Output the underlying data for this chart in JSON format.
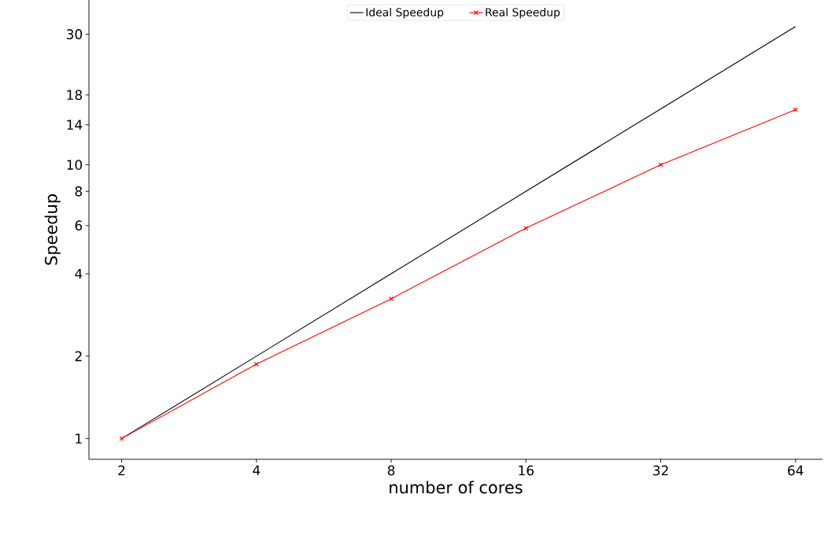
{
  "chart_data": {
    "type": "line",
    "xlabel": "number of cores",
    "ylabel": "Speedup",
    "log": "xy",
    "x": [
      2,
      4,
      8,
      16,
      32,
      64
    ],
    "series": [
      {
        "name": "Ideal Speedup",
        "color": "#000000",
        "values": [
          1,
          2,
          4,
          8,
          16,
          32
        ],
        "marker": "none"
      },
      {
        "name": "Real Speedup",
        "color": "#ff0000",
        "values": [
          1,
          1.87,
          3.24,
          5.87,
          10.0,
          15.9
        ],
        "marker": "cross"
      }
    ],
    "xlim": [
      1.69,
      73.5
    ],
    "ylim": [
      0.84,
      40
    ],
    "xticks": [
      2,
      4,
      8,
      16,
      32,
      64
    ],
    "yticks": [
      1,
      2,
      4,
      6,
      8,
      10,
      14,
      18,
      30
    ],
    "grid": false,
    "legend": "top",
    "line_style": "solid"
  }
}
